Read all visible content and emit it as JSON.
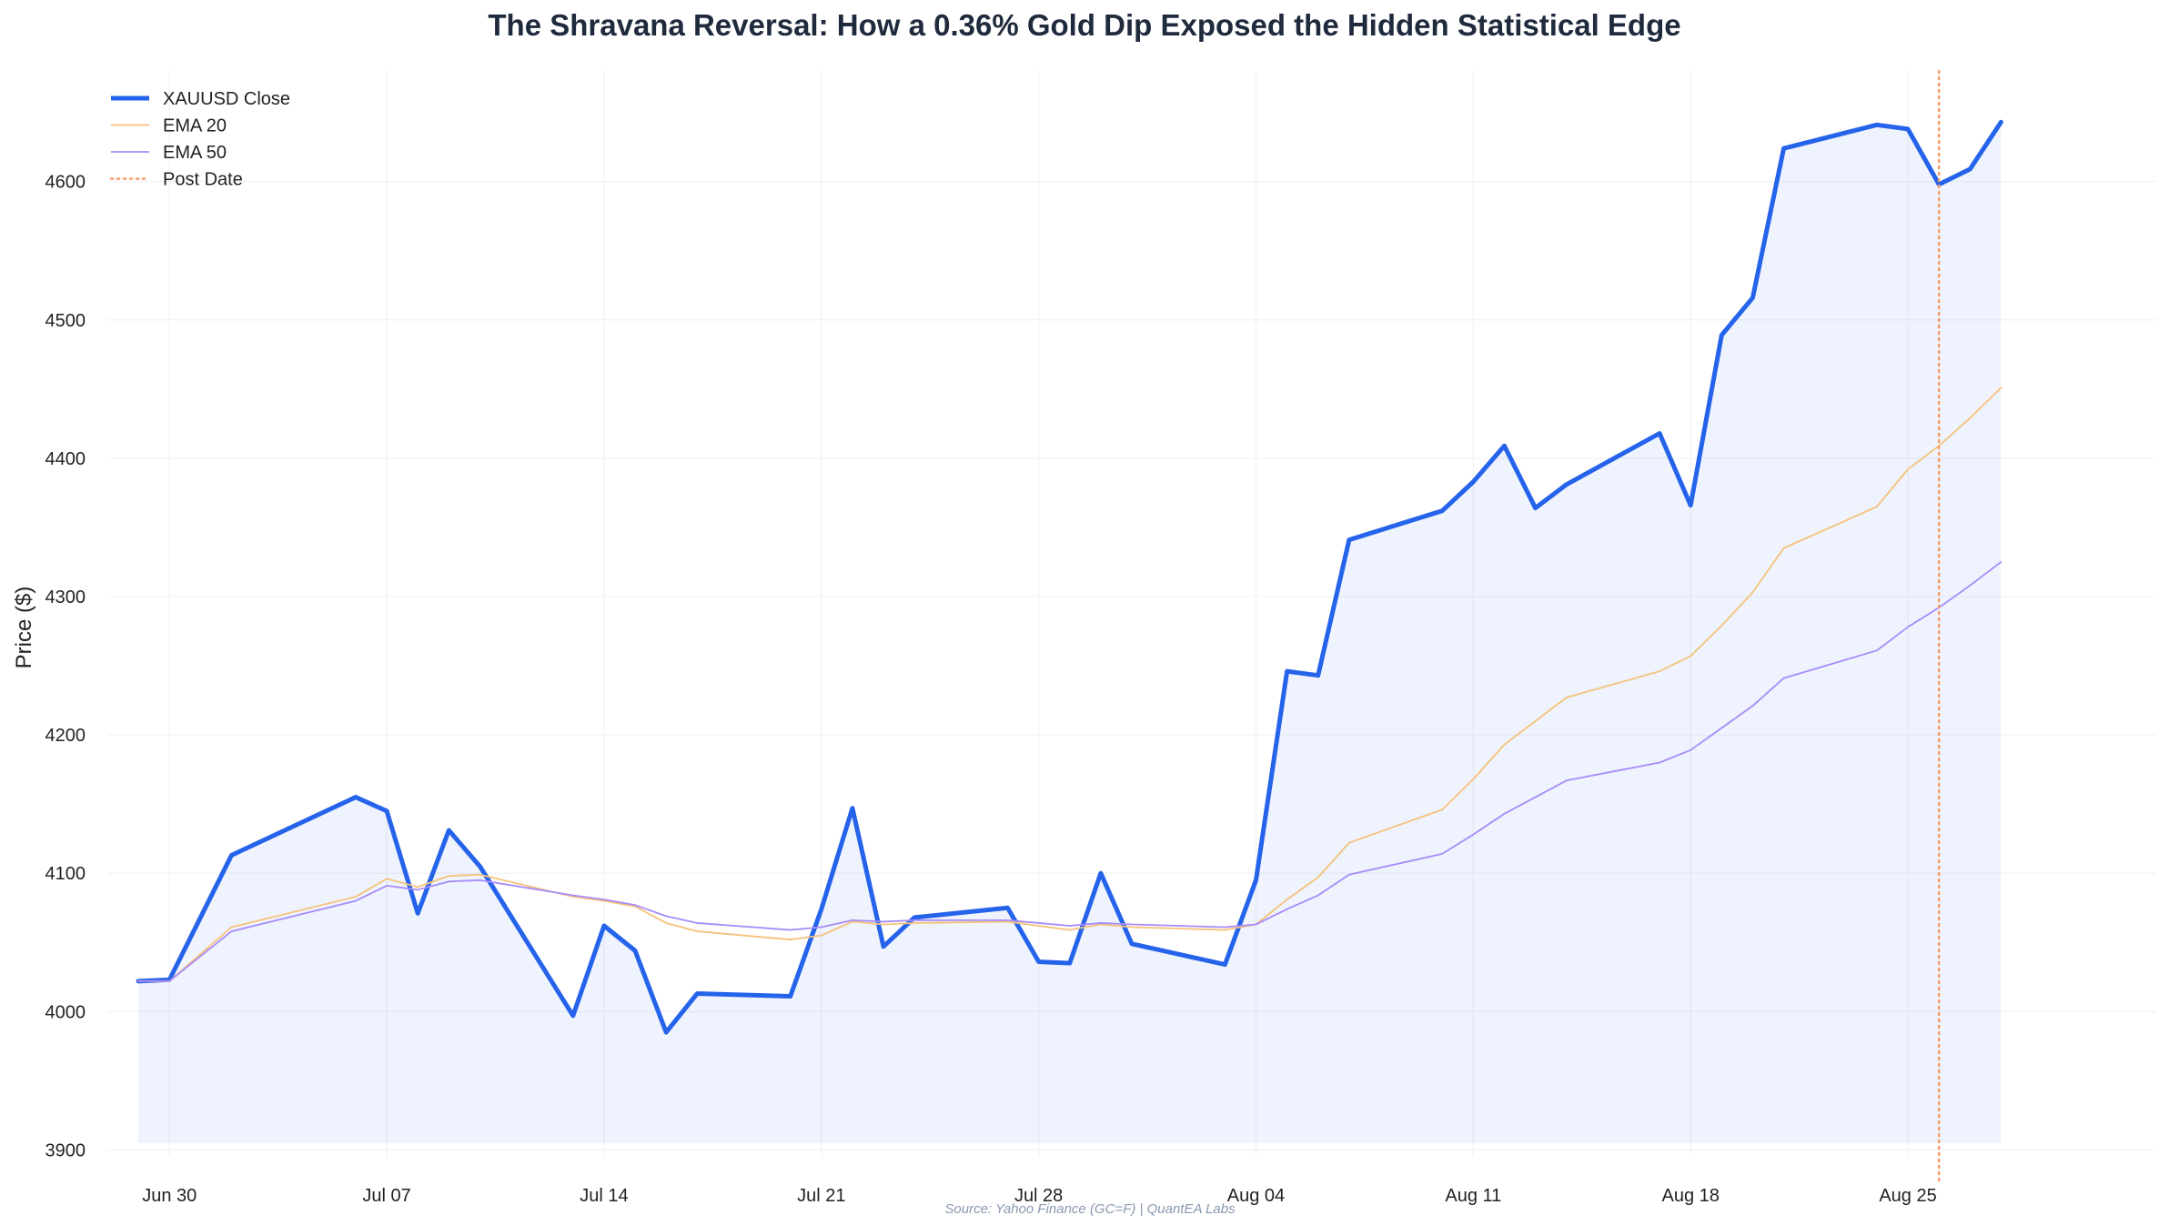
{
  "chart_data": {
    "type": "line",
    "title": "The Shravana Reversal: How a 0.36% Gold Dip Exposed the Hidden Statistical Edge",
    "xlabel": "",
    "ylabel": "Price ($)",
    "ylim": [
      3895,
      4680
    ],
    "xlim": [
      "2025-06-28",
      "2025-09-02"
    ],
    "grid": true,
    "legend_position": "top-left",
    "source_note": "Source: Yahoo Finance (GC=F) | QuantEA Labs",
    "x_ticks": [
      {
        "date": "2025-06-30",
        "label": "Jun 30"
      },
      {
        "date": "2025-07-07",
        "label": "Jul 07"
      },
      {
        "date": "2025-07-14",
        "label": "Jul 14"
      },
      {
        "date": "2025-07-21",
        "label": "Jul 21"
      },
      {
        "date": "2025-07-28",
        "label": "Jul 28"
      },
      {
        "date": "2025-08-04",
        "label": "Aug 04"
      },
      {
        "date": "2025-08-11",
        "label": "Aug 11"
      },
      {
        "date": "2025-08-18",
        "label": "Aug 18"
      },
      {
        "date": "2025-08-25",
        "label": "Aug 25"
      }
    ],
    "y_ticks": [
      3900,
      4000,
      4100,
      4200,
      4300,
      4400,
      4500,
      4600
    ],
    "x": [
      "2025-06-29",
      "2025-06-30",
      "2025-07-02",
      "2025-07-06",
      "2025-07-07",
      "2025-07-08",
      "2025-07-09",
      "2025-07-10",
      "2025-07-13",
      "2025-07-14",
      "2025-07-15",
      "2025-07-16",
      "2025-07-17",
      "2025-07-20",
      "2025-07-21",
      "2025-07-22",
      "2025-07-23",
      "2025-07-24",
      "2025-07-27",
      "2025-07-28",
      "2025-07-29",
      "2025-07-30",
      "2025-07-31",
      "2025-08-03",
      "2025-08-04",
      "2025-08-05",
      "2025-08-06",
      "2025-08-07",
      "2025-08-10",
      "2025-08-11",
      "2025-08-12",
      "2025-08-13",
      "2025-08-14",
      "2025-08-17",
      "2025-08-18",
      "2025-08-19",
      "2025-08-20",
      "2025-08-21",
      "2025-08-24",
      "2025-08-25",
      "2025-08-26",
      "2025-08-27",
      "2025-08-28"
    ],
    "series": [
      {
        "name": "XAUUSD Close",
        "color": "#2563eb",
        "style": "solid-thick",
        "fill": true,
        "values": [
          4022,
          4023,
          4113,
          4155,
          4145,
          4071,
          4131,
          4105,
          3997,
          4062,
          4044,
          3985,
          4013,
          4011,
          4074,
          4147,
          4047,
          4068,
          4075,
          4036,
          4035,
          4100,
          4049,
          4034,
          4095,
          4246,
          4243,
          4341,
          4362,
          4383,
          4409,
          4364,
          4381,
          4418,
          4366,
          4489,
          4516,
          4624,
          4641,
          4638,
          4598,
          4609,
          4643
        ]
      },
      {
        "name": "EMA 20",
        "color": "#f5c27a",
        "style": "solid-thin",
        "values": [
          4022,
          4022,
          4061,
          4083,
          4096,
          4090,
          4098,
          4099,
          4083,
          4080,
          4076,
          4064,
          4058,
          4052,
          4055,
          4065,
          4063,
          4064,
          4065,
          4062,
          4059,
          4063,
          4061,
          4059,
          4063,
          4081,
          4097,
          4122,
          4146,
          4168,
          4193,
          4210,
          4227,
          4246,
          4257,
          4279,
          4303,
          4335,
          4365,
          4392,
          4409,
          4429,
          4451
        ]
      },
      {
        "name": "EMA 50",
        "color": "#a78bfa",
        "style": "solid-thin",
        "values": [
          4022,
          4022,
          4058,
          4080,
          4091,
          4088,
          4094,
          4095,
          4084,
          4081,
          4077,
          4069,
          4064,
          4059,
          4061,
          4066,
          4065,
          4066,
          4066,
          4064,
          4062,
          4064,
          4063,
          4061,
          4063,
          4074,
          4084,
          4099,
          4114,
          4128,
          4143,
          4155,
          4167,
          4180,
          4189,
          4205,
          4221,
          4241,
          4261,
          4278,
          4292,
          4308,
          4325
        ]
      }
    ],
    "post_date": {
      "name": "Post Date",
      "date": "2025-08-26",
      "color": "#f59e6b",
      "style": "dotted"
    }
  }
}
